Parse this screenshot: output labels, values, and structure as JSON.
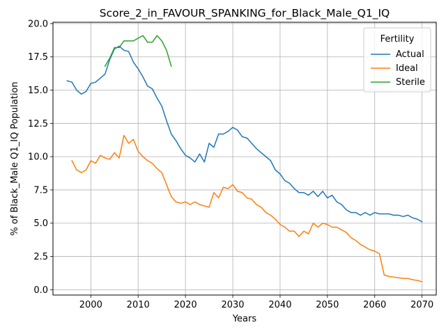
{
  "chart_data": {
    "type": "line",
    "title": "Score_2_in_FAVOUR_SPANKING_for_Black_Male_Q1_IQ",
    "xlabel": "Years",
    "ylabel": "% of Black_Male Q1_IQ Population",
    "xlim": [
      1992,
      2073
    ],
    "ylim": [
      -0.4,
      20.1
    ],
    "xticks": [
      2000,
      2010,
      2020,
      2030,
      2040,
      2050,
      2060,
      2070
    ],
    "yticks": [
      0.0,
      2.5,
      5.0,
      7.5,
      10.0,
      12.5,
      15.0,
      17.5,
      20.0
    ],
    "ytick_labels": [
      "0.0",
      "2.5",
      "5.0",
      "7.5",
      "10.0",
      "12.5",
      "15.0",
      "17.5",
      "20.0"
    ],
    "grid": true,
    "legend": {
      "title": "Fertility",
      "placement": "top-right"
    },
    "series": [
      {
        "name": "Actual",
        "color": "#1f77b4",
        "x": [
          1995,
          1996,
          1997,
          1998,
          1999,
          2000,
          2001,
          2002,
          2003,
          2004,
          2005,
          2006,
          2007,
          2008,
          2009,
          2010,
          2011,
          2012,
          2013,
          2014,
          2015,
          2016,
          2017,
          2018,
          2019,
          2020,
          2021,
          2022,
          2023,
          2024,
          2025,
          2026,
          2027,
          2028,
          2029,
          2030,
          2031,
          2032,
          2033,
          2034,
          2035,
          2036,
          2037,
          2038,
          2039,
          2040,
          2041,
          2042,
          2043,
          2044,
          2045,
          2046,
          2047,
          2048,
          2049,
          2050,
          2051,
          2052,
          2053,
          2054,
          2055,
          2056,
          2057,
          2058,
          2059,
          2060,
          2061,
          2062,
          2063,
          2064,
          2065,
          2066,
          2067,
          2068,
          2069,
          2070
        ],
        "values": [
          15.7,
          15.6,
          15.0,
          14.7,
          14.9,
          15.5,
          15.6,
          15.9,
          16.2,
          17.3,
          18.1,
          18.3,
          18.0,
          17.9,
          17.1,
          16.6,
          16.0,
          15.3,
          15.1,
          14.4,
          13.8,
          12.7,
          11.7,
          11.2,
          10.6,
          10.1,
          9.9,
          9.6,
          10.2,
          9.6,
          11.0,
          10.7,
          11.7,
          11.7,
          11.9,
          12.2,
          12.0,
          11.5,
          11.4,
          11.0,
          10.6,
          10.3,
          10.0,
          9.7,
          9.0,
          8.7,
          8.2,
          8.0,
          7.6,
          7.3,
          7.3,
          7.1,
          7.4,
          7.0,
          7.4,
          6.9,
          7.1,
          6.6,
          6.4,
          6.0,
          5.8,
          5.8,
          5.6,
          5.8,
          5.6,
          5.8,
          5.7,
          5.7,
          5.7,
          5.6,
          5.6,
          5.5,
          5.6,
          5.4,
          5.3,
          5.1
        ]
      },
      {
        "name": "Ideal",
        "color": "#ff7f0e",
        "x": [
          1996,
          1997,
          1998,
          1999,
          2000,
          2001,
          2002,
          2003,
          2004,
          2005,
          2006,
          2007,
          2008,
          2009,
          2010,
          2011,
          2012,
          2013,
          2014,
          2015,
          2016,
          2017,
          2018,
          2019,
          2020,
          2021,
          2022,
          2023,
          2024,
          2025,
          2026,
          2027,
          2028,
          2029,
          2030,
          2031,
          2032,
          2033,
          2034,
          2035,
          2036,
          2037,
          2038,
          2039,
          2040,
          2041,
          2042,
          2043,
          2044,
          2045,
          2046,
          2047,
          2048,
          2049,
          2050,
          2051,
          2052,
          2053,
          2054,
          2055,
          2056,
          2057,
          2058,
          2059,
          2060,
          2061,
          2062,
          2063,
          2064,
          2065,
          2066,
          2067,
          2068,
          2069,
          2070
        ],
        "values": [
          9.7,
          9.0,
          8.8,
          9.0,
          9.7,
          9.5,
          10.1,
          9.9,
          9.8,
          10.3,
          9.9,
          11.6,
          11.0,
          11.3,
          10.4,
          10.0,
          9.7,
          9.5,
          9.1,
          8.8,
          7.9,
          7.0,
          6.6,
          6.5,
          6.6,
          6.4,
          6.6,
          6.4,
          6.3,
          6.2,
          7.3,
          6.9,
          7.7,
          7.6,
          7.9,
          7.4,
          7.3,
          6.9,
          6.8,
          6.4,
          6.2,
          5.8,
          5.6,
          5.3,
          4.9,
          4.7,
          4.4,
          4.4,
          4.0,
          4.4,
          4.2,
          5.0,
          4.7,
          5.0,
          4.9,
          4.7,
          4.7,
          4.5,
          4.3,
          3.9,
          3.7,
          3.4,
          3.2,
          3.0,
          2.9,
          2.7,
          1.1,
          1.0,
          0.95,
          0.9,
          0.85,
          0.85,
          0.75,
          0.7,
          0.6
        ]
      },
      {
        "name": "Sterile",
        "color": "#2ca02c",
        "x": [
          2003,
          2004,
          2005,
          2006,
          2007,
          2008,
          2009,
          2010,
          2011,
          2012,
          2013,
          2014,
          2015,
          2016,
          2017
        ],
        "values": [
          16.8,
          17.4,
          18.2,
          18.2,
          18.7,
          18.7,
          18.7,
          18.9,
          19.1,
          18.6,
          18.6,
          19.1,
          18.7,
          18.0,
          16.8
        ]
      }
    ]
  }
}
